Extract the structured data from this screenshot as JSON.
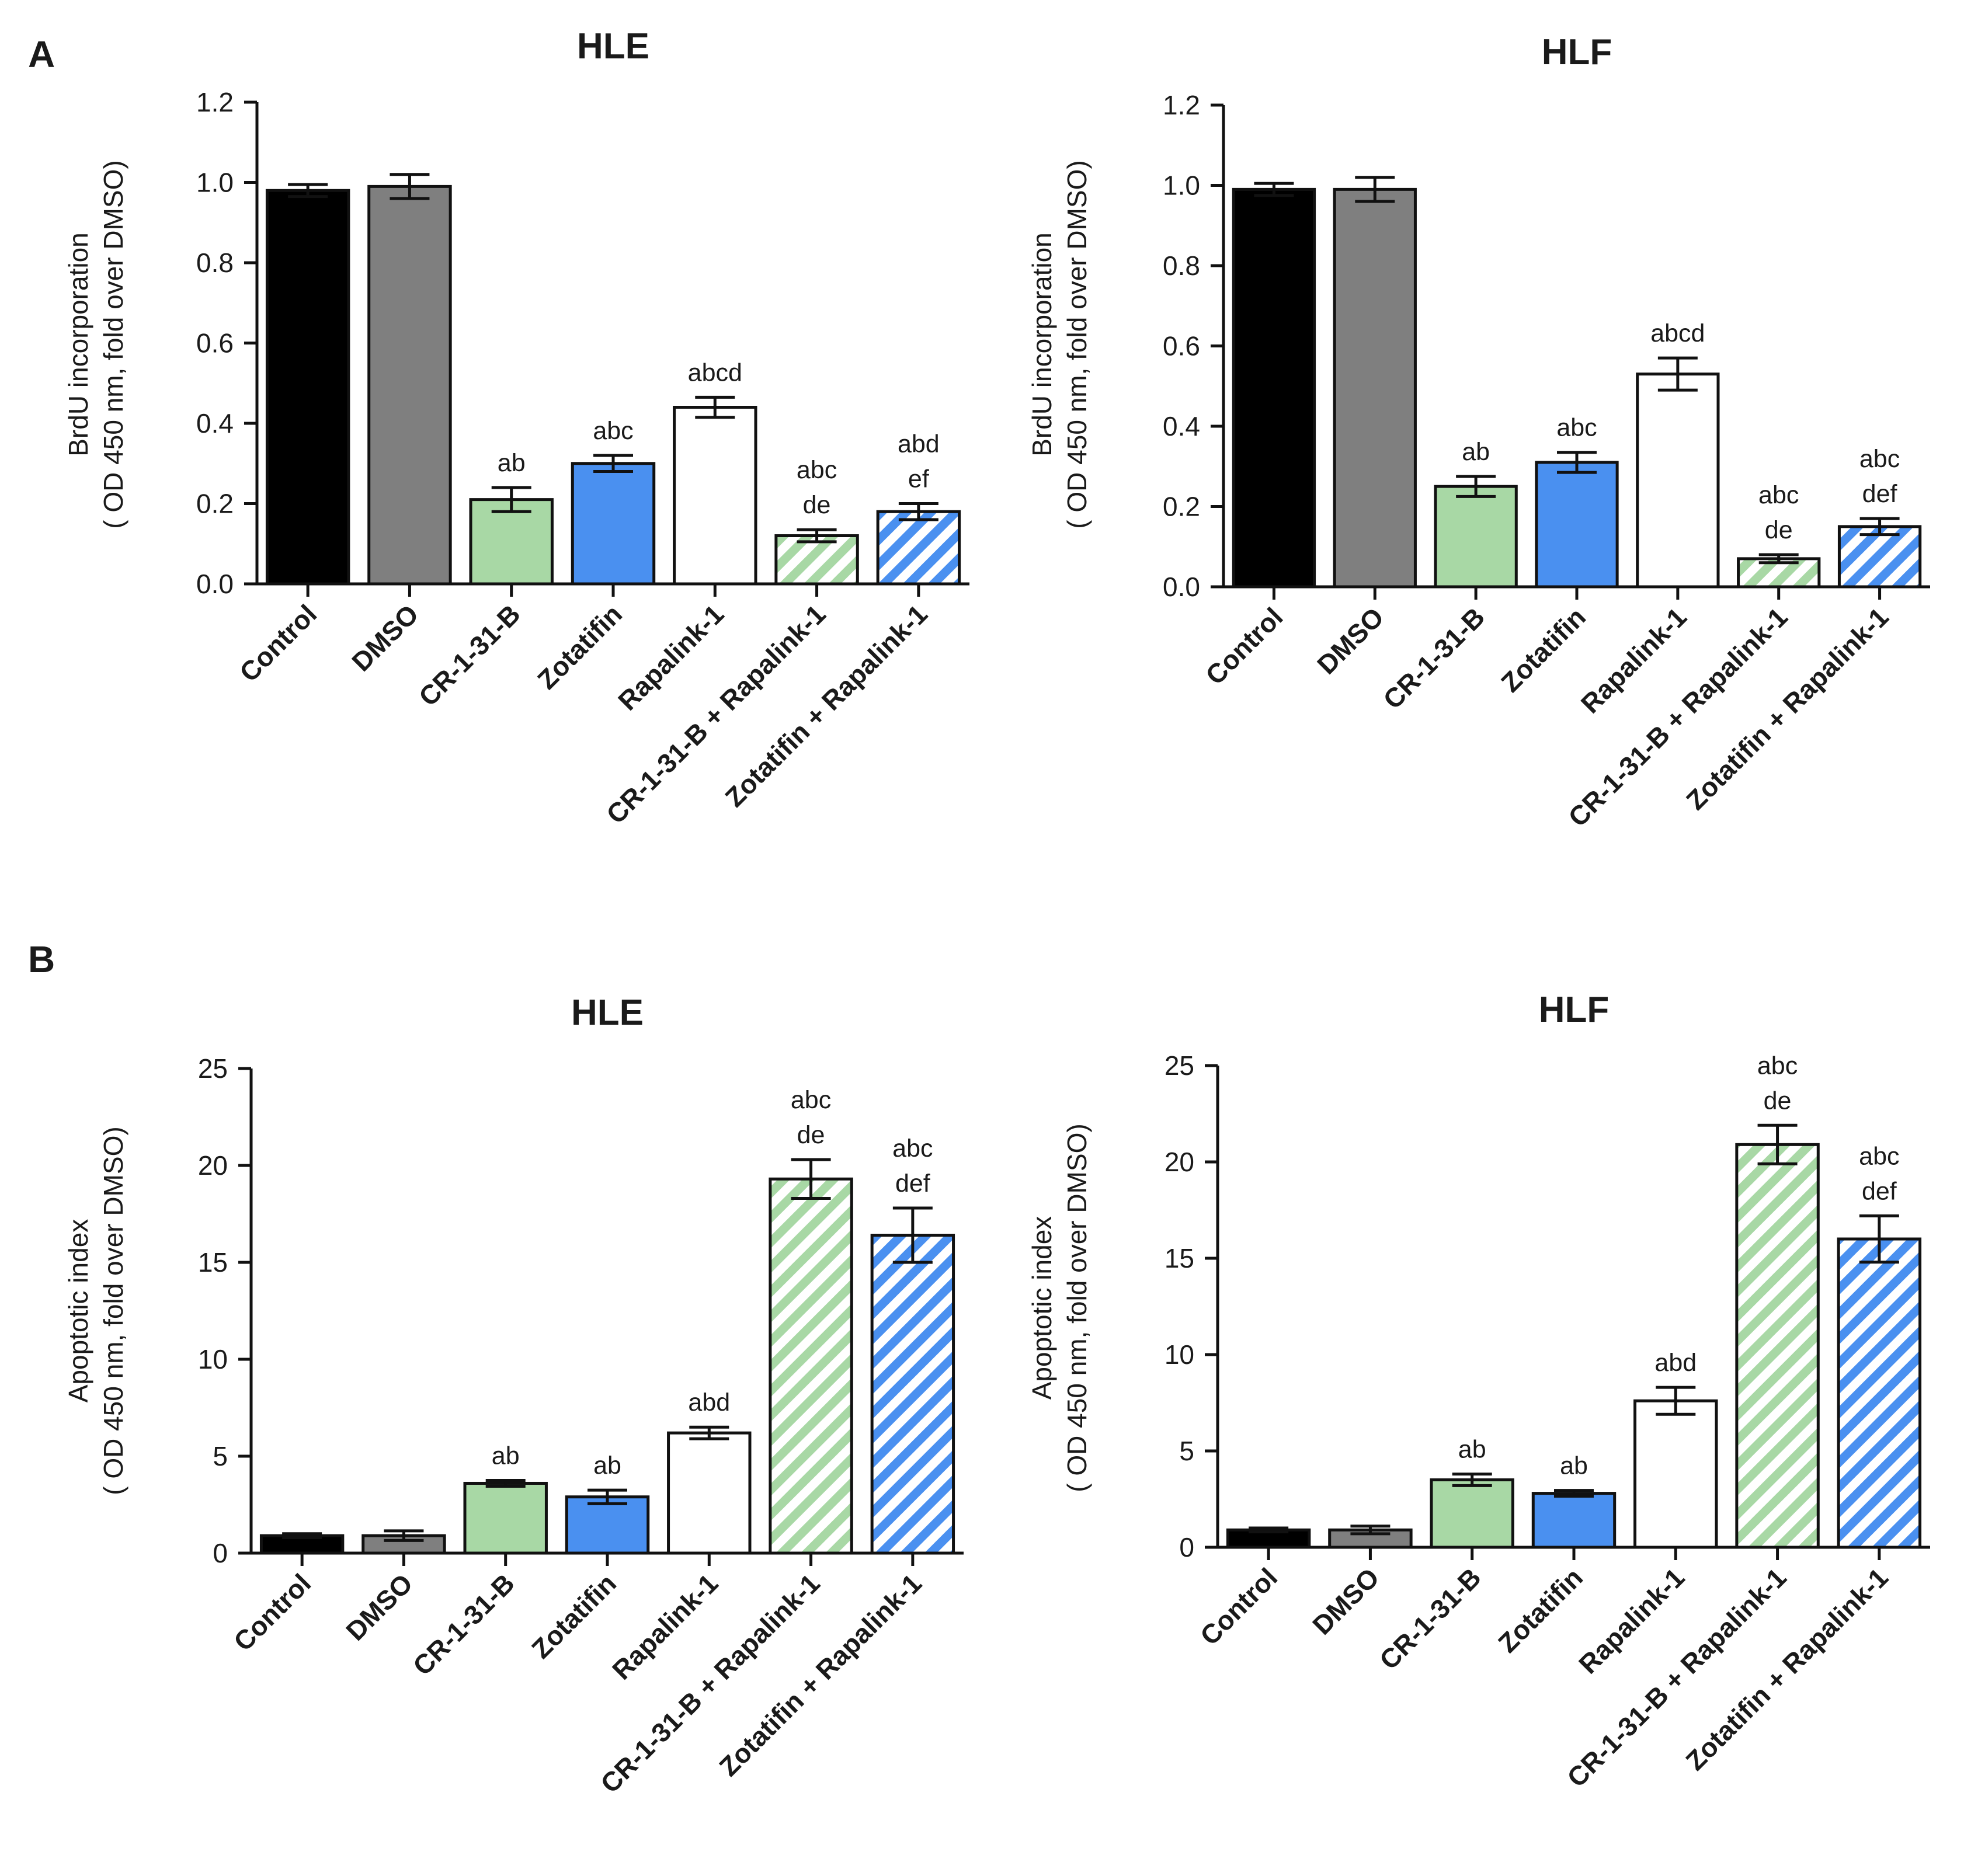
{
  "panels": [
    {
      "letter": "A"
    },
    {
      "letter": "B"
    }
  ],
  "chart_data": [
    {
      "type": "bar",
      "panel": "A",
      "title": "HLE",
      "ylabel": [
        "BrdU incorporation",
        "( OD 450 nm, fold over DMSO)"
      ],
      "ylim": [
        0,
        1.2
      ],
      "yticks": [
        "0.0",
        "0.2",
        "0.4",
        "0.6",
        "0.8",
        "1.0",
        "1.2"
      ],
      "categories": [
        "Control",
        "DMSO",
        "CR-1-31-B",
        "Zotatifin",
        "Rapalink-1",
        "CR-1-31-B + Rapalink-1",
        "Zotatifin + Rapalink-1"
      ],
      "values": [
        0.98,
        0.99,
        0.21,
        0.3,
        0.44,
        0.12,
        0.18
      ],
      "errors": [
        0.015,
        0.03,
        0.03,
        0.02,
        0.025,
        0.015,
        0.02
      ],
      "annotations": [
        [],
        [],
        [
          "ab"
        ],
        [
          "abc"
        ],
        [
          "abcd"
        ],
        [
          "abc",
          "de"
        ],
        [
          "abd",
          "ef"
        ]
      ],
      "grid": false
    },
    {
      "type": "bar",
      "panel": "A",
      "title": "HLF",
      "ylabel": [
        "BrdU incorporation",
        "( OD 450 nm, fold over DMSO)"
      ],
      "ylim": [
        0,
        1.2
      ],
      "yticks": [
        "0.0",
        "0.2",
        "0.4",
        "0.6",
        "0.8",
        "1.0",
        "1.2"
      ],
      "categories": [
        "Control",
        "DMSO",
        "CR-1-31-B",
        "Zotatifin",
        "Rapalink-1",
        "CR-1-31-B + Rapalink-1",
        "Zotatifin + Rapalink-1"
      ],
      "values": [
        0.99,
        0.99,
        0.25,
        0.31,
        0.53,
        0.07,
        0.15
      ],
      "errors": [
        0.015,
        0.03,
        0.025,
        0.025,
        0.04,
        0.01,
        0.02
      ],
      "annotations": [
        [],
        [],
        [
          "ab"
        ],
        [
          "abc"
        ],
        [
          "abcd"
        ],
        [
          "abc",
          "de"
        ],
        [
          "abc",
          "def"
        ]
      ],
      "grid": false
    },
    {
      "type": "bar",
      "panel": "B",
      "title": "HLE",
      "ylabel": [
        "Apoptotic index",
        "( OD 450 nm, fold over DMSO)"
      ],
      "ylim": [
        0,
        25
      ],
      "yticks": [
        "0",
        "5",
        "10",
        "15",
        "20",
        "25"
      ],
      "categories": [
        "Control",
        "DMSO",
        "CR-1-31-B",
        "Zotatifin",
        "Rapalink-1",
        "CR-1-31-B + Rapalink-1",
        "Zotatifin + Rapalink-1"
      ],
      "values": [
        0.9,
        0.9,
        3.6,
        2.9,
        6.2,
        19.3,
        16.4
      ],
      "errors": [
        0.1,
        0.25,
        0.15,
        0.35,
        0.3,
        1.0,
        1.4
      ],
      "annotations": [
        [],
        [],
        [
          "ab"
        ],
        [
          "ab"
        ],
        [
          "abd"
        ],
        [
          "abc",
          "de"
        ],
        [
          "abc",
          "def"
        ]
      ],
      "grid": false
    },
    {
      "type": "bar",
      "panel": "B",
      "title": "HLF",
      "ylabel": [
        "Apoptotic index",
        "( OD 450 nm, fold over DMSO)"
      ],
      "ylim": [
        0,
        25
      ],
      "yticks": [
        "0",
        "5",
        "10",
        "15",
        "20",
        "25"
      ],
      "categories": [
        "Control",
        "DMSO",
        "CR-1-31-B",
        "Zotatifin",
        "Rapalink-1",
        "CR-1-31-B + Rapalink-1",
        "Zotatifin + Rapalink-1"
      ],
      "values": [
        0.9,
        0.9,
        3.5,
        2.8,
        7.6,
        20.9,
        16.0
      ],
      "errors": [
        0.1,
        0.2,
        0.3,
        0.15,
        0.7,
        1.0,
        1.2
      ],
      "annotations": [
        [],
        [],
        [
          "ab"
        ],
        [
          "ab"
        ],
        [
          "abd"
        ],
        [
          "abc",
          "de"
        ],
        [
          "abc",
          "def"
        ]
      ],
      "grid": false
    }
  ],
  "colors": {
    "Control": "#000000",
    "DMSO": "#7f7f7f",
    "CR-1-31-B": "#a8d8a5",
    "Zotatifin": "#4a90f0",
    "Rapalink-1": "#ffffff",
    "CR-1-31-B + Rapalink-1": "#a8d8a5",
    "Zotatifin + Rapalink-1": "#4a90f0"
  },
  "hatched_categories": [
    "CR-1-31-B + Rapalink-1",
    "Zotatifin + Rapalink-1"
  ]
}
